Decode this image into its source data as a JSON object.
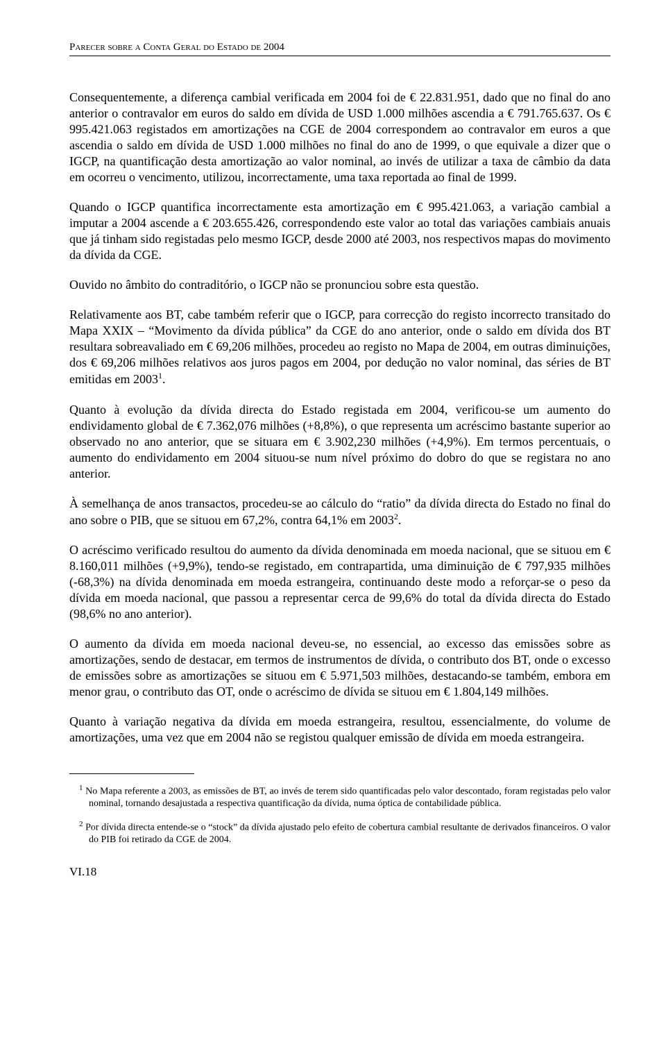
{
  "header": "Parecer sobre a Conta Geral do Estado de 2004",
  "paragraphs": {
    "p1": "Consequentemente, a diferença cambial verificada em 2004 foi de € 22.831.951, dado que no final do ano anterior o contravalor em euros do saldo em dívida de USD 1.000 milhões ascendia a € 791.765.637. Os € 995.421.063 registados em amortizações na CGE de 2004 correspondem ao contravalor em euros a que ascendia o saldo em dívida de USD 1.000 milhões no final do ano de 1999, o que equivale a dizer que o IGCP, na quantificação desta amortização ao valor nominal, ao invés de utilizar a taxa de câmbio da data em ocorreu o vencimento, utilizou, incorrectamente, uma taxa reportada ao final de 1999.",
    "p2": "Quando o IGCP quantifica incorrectamente esta amortização em € 995.421.063, a variação cambial a imputar a 2004 ascende a € 203.655.426, correspondendo este valor ao total das variações cambiais anuais que já tinham sido registadas pelo mesmo IGCP, desde 2000 até 2003, nos respectivos mapas do movimento da dívida da CGE.",
    "p3": "Ouvido no âmbito do contraditório, o IGCP não se pronunciou sobre esta questão.",
    "p4a": "Relativamente aos BT, cabe também referir que o IGCP, para correcção do registo incorrecto transitado do Mapa XXIX – “Movimento da dívida pública” da CGE do ano anterior, onde o saldo em dívida dos BT resultara sobreavaliado em € 69,206 milhões, procedeu ao registo no Mapa de 2004, em outras diminuições, dos € 69,206 milhões relativos aos juros pagos em 2004, por dedução no valor nominal, das séries de BT emitidas em 2003",
    "p4b": ".",
    "p5": "Quanto à evolução da dívida directa do Estado registada em 2004, verificou-se um aumento do endividamento global de € 7.362,076 milhões (+8,8%), o que representa um acréscimo bastante superior ao observado no ano anterior, que se situara em € 3.902,230 milhões (+4,9%). Em termos percentuais, o aumento do endividamento em 2004 situou-se num nível próximo do dobro do que se registara no ano anterior.",
    "p6a": "À semelhança de anos transactos, procedeu-se ao cálculo do “ratio” da dívida directa do Estado no final do ano sobre o PIB, que se situou em 67,2%, contra 64,1% em 2003",
    "p6b": ".",
    "p7": "O acréscimo verificado resultou do aumento da dívida denominada em moeda nacional, que se situou em € 8.160,011 milhões (+9,9%), tendo-se registado, em contrapartida, uma diminuição de € 797,935 milhões (-68,3%) na dívida denominada em moeda estrangeira, continuando deste modo a reforçar-se o peso da dívida em moeda nacional, que passou a representar cerca de 99,6% do total da dívida directa do Estado (98,6% no ano anterior).",
    "p8": "O aumento da dívida em moeda nacional deveu-se, no essencial, ao excesso das emissões sobre as amortizações, sendo de destacar, em termos de instrumentos de dívida, o contributo dos BT, onde o excesso de emissões sobre as amortizações se situou em € 5.971,503 milhões, destacando-se também, embora em menor grau, o contributo das OT, onde o acréscimo de dívida se situou em € 1.804,149 milhões.",
    "p9": "Quanto à variação negativa da dívida em moeda estrangeira, resultou, essencialmente, do volume de amortizações, uma vez que em 2004 não se registou qualquer emissão de dívida em moeda estrangeira."
  },
  "footnotes": {
    "f1_num": "1",
    "f1": " No Mapa referente a 2003, as emissões de BT, ao invés de terem sido quantificadas pelo valor descontado, foram registadas pelo valor nominal, tornando desajustada a respectiva quantificação da dívida, numa óptica de contabilidade pública.",
    "f2_num": "2",
    "f2": " Por dívida directa entende-se o “stock” da dívida ajustado pelo efeito de cobertura cambial resultante de derivados financeiros. O valor do PIB foi retirado da CGE de 2004."
  },
  "refs": {
    "r1": "1",
    "r2": "2"
  },
  "pageNumber": "VI.18"
}
